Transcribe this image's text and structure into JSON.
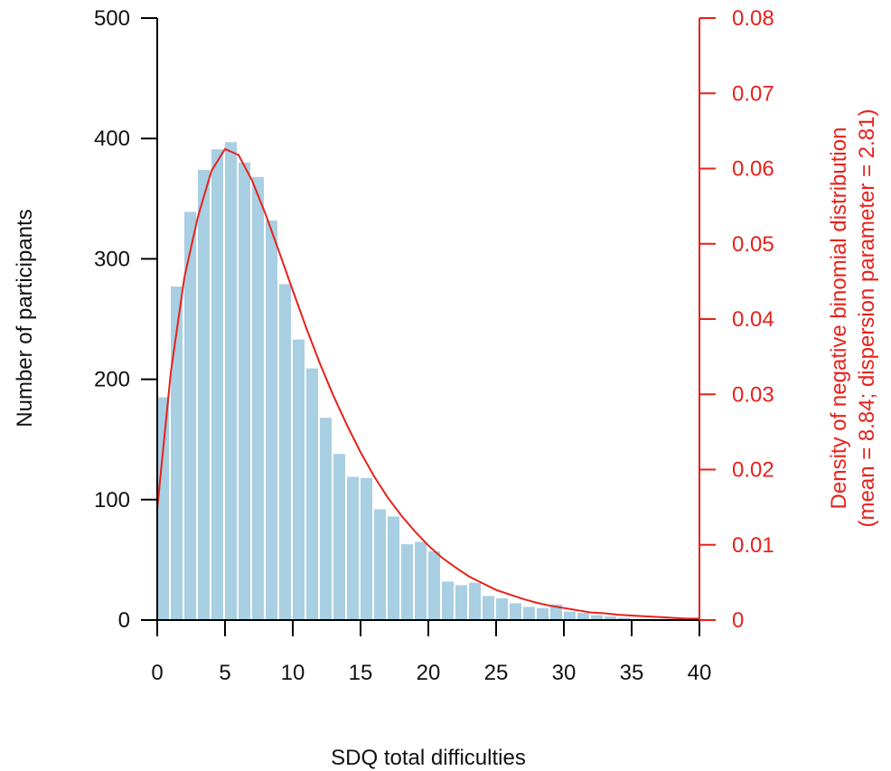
{
  "chart_data": {
    "type": "bar",
    "xlabel": "SDQ total difficulties",
    "ylabel": "Number of participants",
    "y2label_line1": "Density of negative binomial distribution",
    "y2label_line2": "(mean = 8.84; dispersion parameter = 2.81)",
    "xlim": [
      0,
      40
    ],
    "ylim": [
      0,
      500
    ],
    "y2lim": [
      0,
      0.08
    ],
    "x_ticks": [
      "0",
      "5",
      "10",
      "15",
      "20",
      "25",
      "30",
      "35",
      "40"
    ],
    "y_ticks": [
      "0",
      "100",
      "200",
      "300",
      "400",
      "500"
    ],
    "y2_ticks": [
      "0",
      "0.01",
      "0.02",
      "0.03",
      "0.04",
      "0.05",
      "0.06",
      "0.07",
      "0.08"
    ],
    "grid": false,
    "series": [
      {
        "type": "bar",
        "color": "#a9cfe3",
        "categories": [
          0,
          1,
          2,
          3,
          4,
          5,
          6,
          7,
          8,
          9,
          10,
          11,
          12,
          13,
          14,
          15,
          16,
          17,
          18,
          19,
          20,
          21,
          22,
          23,
          24,
          25,
          26,
          27,
          28,
          29,
          30,
          31,
          32,
          33,
          34,
          35,
          36,
          37,
          38,
          39
        ],
        "values": [
          185,
          277,
          339,
          374,
          391,
          397,
          380,
          368,
          332,
          279,
          233,
          209,
          168,
          138,
          119,
          118,
          92,
          86,
          63,
          65,
          57,
          32,
          29,
          31,
          20,
          18,
          14,
          11,
          10,
          13,
          7,
          6,
          4,
          3,
          2,
          1,
          1,
          1,
          1,
          0
        ]
      },
      {
        "type": "line",
        "color": "#e8211b",
        "axis": "right",
        "x": [
          0,
          1,
          2,
          3,
          4,
          5,
          6,
          7,
          8,
          9,
          10,
          11,
          12,
          13,
          14,
          15,
          16,
          17,
          18,
          19,
          20,
          21,
          22,
          23,
          24,
          25,
          26,
          27,
          28,
          29,
          30,
          31,
          32,
          33,
          34,
          35,
          36,
          37,
          38,
          39,
          40
        ],
        "values": [
          0.0148,
          0.0329,
          0.0455,
          0.0536,
          0.0597,
          0.0626,
          0.0618,
          0.0584,
          0.0539,
          0.0489,
          0.0438,
          0.0388,
          0.0341,
          0.0298,
          0.0259,
          0.0223,
          0.0191,
          0.0163,
          0.0139,
          0.0118,
          0.0099,
          0.0083,
          0.007,
          0.0058,
          0.0049,
          0.004,
          0.0034,
          0.0028,
          0.0023,
          0.0019,
          0.0016,
          0.0013,
          0.001,
          0.0009,
          0.0007,
          0.0006,
          0.0005,
          0.0004,
          0.0003,
          0.0002,
          0.0002
        ]
      }
    ],
    "colors": {
      "axis_left": "#000000",
      "axis_right": "#e8211b",
      "bars": "#a9cfe3",
      "curve": "#e8211b"
    }
  }
}
